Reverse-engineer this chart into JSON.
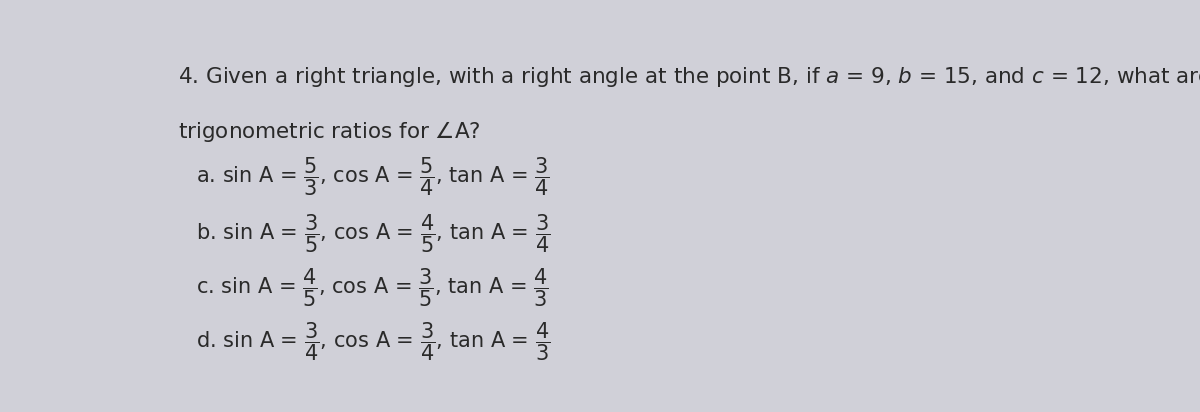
{
  "background_color": "#d0d0d8",
  "text_color": "#2a2a2a",
  "options": [
    {
      "label": "a.",
      "sin_num": "5",
      "sin_den": "3",
      "cos_num": "5",
      "cos_den": "4",
      "tan_num": "3",
      "tan_den": "4"
    },
    {
      "label": "b.",
      "sin_num": "3",
      "sin_den": "5",
      "cos_num": "4",
      "cos_den": "5",
      "tan_num": "3",
      "tan_den": "4"
    },
    {
      "label": "c.",
      "sin_num": "4",
      "sin_den": "5",
      "cos_num": "3",
      "cos_den": "5",
      "tan_num": "4",
      "tan_den": "3"
    },
    {
      "label": "d.",
      "sin_num": "3",
      "sin_den": "4",
      "cos_num": "3",
      "cos_den": "4",
      "tan_num": "4",
      "tan_den": "3"
    }
  ],
  "font_size_title": 15.5,
  "font_size_option": 15.0
}
